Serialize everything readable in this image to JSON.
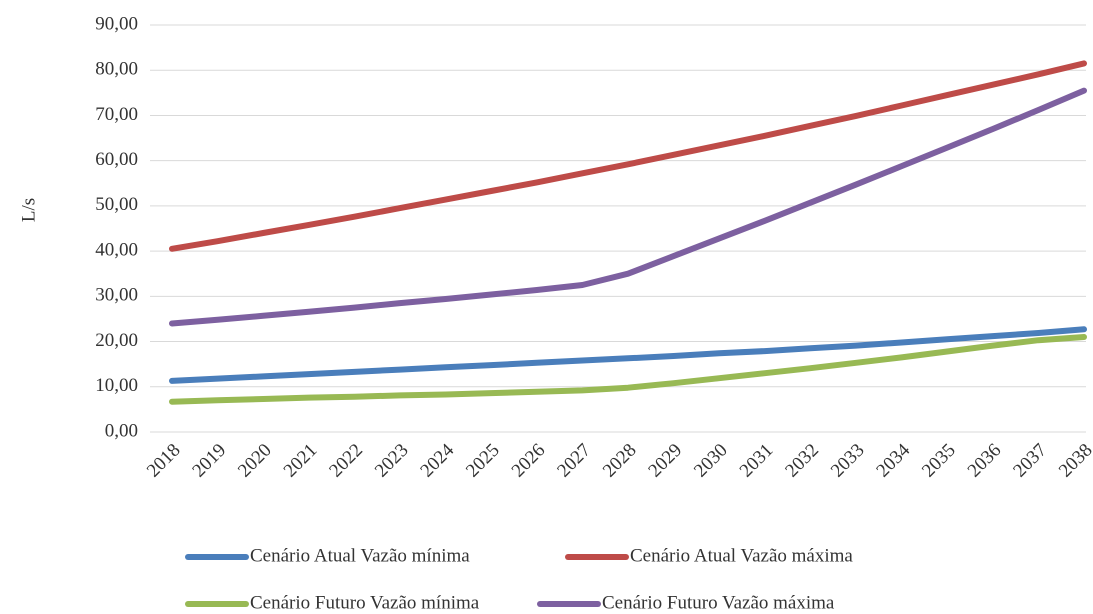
{
  "chart_data": {
    "type": "line",
    "y_label": "L/s",
    "categories": [
      "2018",
      "2019",
      "2020",
      "2021",
      "2022",
      "2023",
      "2024",
      "2025",
      "2026",
      "2027",
      "2028",
      "2029",
      "2030",
      "2031",
      "2032",
      "2033",
      "2034",
      "2035",
      "2036",
      "2037",
      "2038"
    ],
    "series": [
      {
        "name": "Cenário Atual Vazão mínima",
        "color": "#4a7ebb",
        "values": [
          11.3,
          11.8,
          12.3,
          12.8,
          13.3,
          13.8,
          14.3,
          14.8,
          15.3,
          15.8,
          16.3,
          16.8,
          17.4,
          17.9,
          18.5,
          19.1,
          19.8,
          20.5,
          21.2,
          21.9,
          22.7
        ]
      },
      {
        "name": "Cenário Atual Vazão máxima",
        "color": "#be4b48",
        "values": [
          40.5,
          42.2,
          44.0,
          45.8,
          47.6,
          49.5,
          51.4,
          53.3,
          55.2,
          57.2,
          59.2,
          61.3,
          63.4,
          65.5,
          67.7,
          69.9,
          72.2,
          74.5,
          76.8,
          79.1,
          81.5
        ]
      },
      {
        "name": "Cenário Futuro Vazão  mínima",
        "color": "#98b954",
        "values": [
          6.7,
          7.0,
          7.3,
          7.6,
          7.8,
          8.1,
          8.3,
          8.6,
          8.9,
          9.2,
          9.8,
          10.8,
          11.9,
          13.0,
          14.1,
          15.3,
          16.5,
          17.8,
          19.1,
          20.3,
          21.0
        ]
      },
      {
        "name": "Cenário Futuro Vazão máxima",
        "color": "#7d60a0",
        "values": [
          24.0,
          24.8,
          25.7,
          26.6,
          27.5,
          28.5,
          29.4,
          30.4,
          31.4,
          32.5,
          35.0,
          38.9,
          42.8,
          46.7,
          50.7,
          54.7,
          58.8,
          62.9,
          67.0,
          71.2,
          75.5
        ]
      }
    ],
    "ylim": [
      0,
      90
    ],
    "yticks": [
      {
        "value": 0,
        "label": "0,00"
      },
      {
        "value": 10,
        "label": "10,00"
      },
      {
        "value": 20,
        "label": "20,00"
      },
      {
        "value": 30,
        "label": "30,00"
      },
      {
        "value": 40,
        "label": "40,00"
      },
      {
        "value": 50,
        "label": "50,00"
      },
      {
        "value": 60,
        "label": "60,00"
      },
      {
        "value": 70,
        "label": "70,00"
      },
      {
        "value": 80,
        "label": "80,00"
      },
      {
        "value": 90,
        "label": "90,00"
      }
    ],
    "grid": true,
    "legend": "bottom"
  }
}
